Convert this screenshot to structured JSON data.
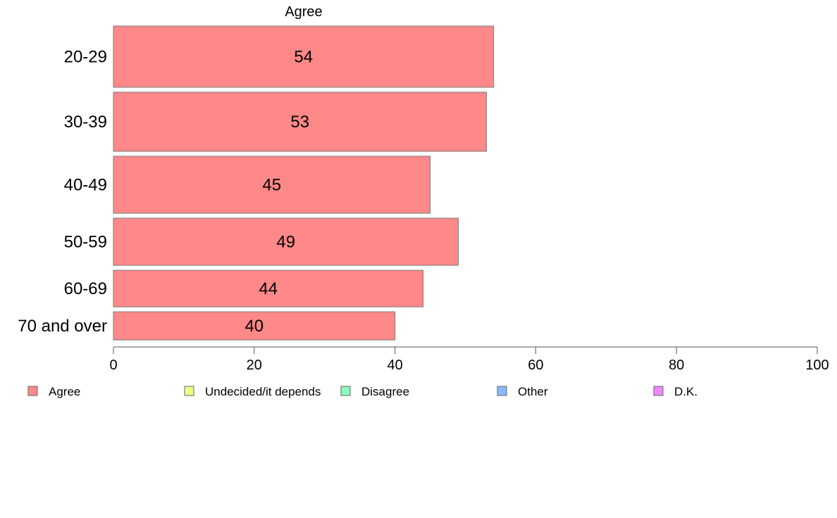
{
  "chart_data": {
    "type": "bar",
    "orientation": "horizontal",
    "title": "",
    "panel_title": "Agree",
    "categories": [
      "20-29",
      "30-39",
      "40-49",
      "50-59",
      "60-69",
      "70 and over"
    ],
    "series": [
      {
        "name": "Agree",
        "values": [
          54,
          53,
          45,
          49,
          44,
          40
        ],
        "color": "#ff8888"
      }
    ],
    "xlim": [
      0,
      100
    ],
    "xticks": [
      0,
      20,
      40,
      60,
      80,
      100
    ],
    "xlabel": "",
    "ylabel": "",
    "grid": false,
    "legend": {
      "placement": "bottom",
      "entries": [
        {
          "label": "Agree",
          "color": "#ff8888"
        },
        {
          "label": "Undecided/it depends",
          "color": "#eeff88"
        },
        {
          "label": "Disagree",
          "color": "#88ffbb"
        },
        {
          "label": "Other",
          "color": "#88bbff"
        },
        {
          "label": "D.K.",
          "color": "#ee88ff"
        }
      ]
    }
  }
}
